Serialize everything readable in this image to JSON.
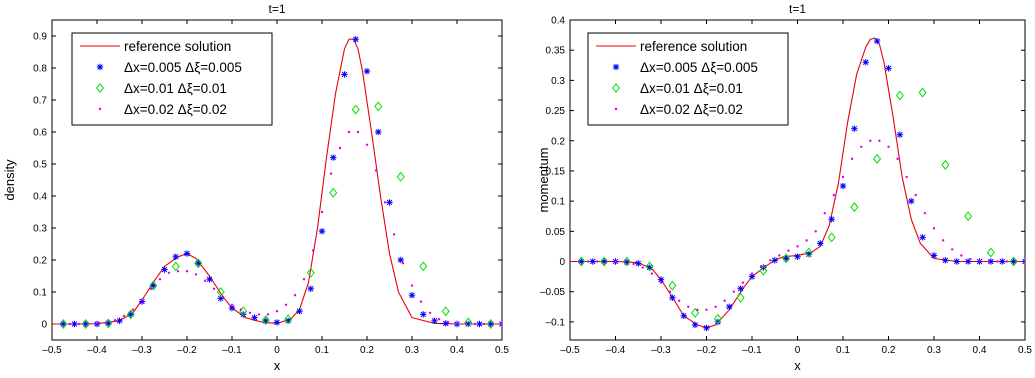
{
  "chart_data": [
    {
      "type": "line",
      "title": "t=1",
      "xlabel": "x",
      "ylabel": "density",
      "xlim": [
        -0.5,
        0.5
      ],
      "ylim": [
        -0.05,
        0.95
      ],
      "xticks": [
        "-0.5",
        "-0.4",
        "-0.3",
        "-0.2",
        "-0.1",
        "0",
        "0.1",
        "0.2",
        "0.3",
        "0.4",
        "0.5"
      ],
      "yticks": [
        "0",
        "0.1",
        "0.2",
        "0.3",
        "0.4",
        "0.5",
        "0.6",
        "0.7",
        "0.8",
        "0.9"
      ],
      "legend_position": "top-left",
      "grid": false,
      "series": [
        {
          "name": "reference solution",
          "marker": "line",
          "color": "#e8000b",
          "x": [
            -0.5,
            -0.45,
            -0.4,
            -0.35,
            -0.32,
            -0.3,
            -0.27,
            -0.25,
            -0.22,
            -0.2,
            -0.18,
            -0.15,
            -0.12,
            -0.1,
            -0.07,
            -0.05,
            -0.03,
            0,
            0.03,
            0.05,
            0.07,
            0.09,
            0.11,
            0.13,
            0.15,
            0.16,
            0.17,
            0.18,
            0.19,
            0.21,
            0.23,
            0.25,
            0.27,
            0.3,
            0.35,
            0.4,
            0.45,
            0.5
          ],
          "y": [
            0,
            0,
            0.001,
            0.01,
            0.035,
            0.075,
            0.14,
            0.18,
            0.21,
            0.22,
            0.205,
            0.15,
            0.085,
            0.05,
            0.02,
            0.012,
            0.005,
            0.002,
            0.015,
            0.045,
            0.13,
            0.3,
            0.52,
            0.72,
            0.86,
            0.89,
            0.89,
            0.86,
            0.79,
            0.6,
            0.4,
            0.22,
            0.1,
            0.02,
            0.002,
            0,
            0,
            0
          ]
        },
        {
          "name": "Δx=0.005  Δξ=0.005",
          "marker": "asterisk",
          "color": "#0000ff",
          "x": [
            -0.475,
            -0.45,
            -0.425,
            -0.4,
            -0.375,
            -0.35,
            -0.325,
            -0.3,
            -0.275,
            -0.25,
            -0.225,
            -0.2,
            -0.175,
            -0.15,
            -0.125,
            -0.1,
            -0.075,
            -0.05,
            -0.025,
            0,
            0.025,
            0.05,
            0.075,
            0.1,
            0.125,
            0.15,
            0.175,
            0.2,
            0.225,
            0.25,
            0.275,
            0.3,
            0.325,
            0.35,
            0.375,
            0.4,
            0.425,
            0.45,
            0.475,
            0.5
          ],
          "y": [
            0,
            0,
            0,
            0,
            0.002,
            0.01,
            0.03,
            0.07,
            0.12,
            0.17,
            0.21,
            0.22,
            0.19,
            0.14,
            0.08,
            0.05,
            0.03,
            0.02,
            0.01,
            0.005,
            0.01,
            0.04,
            0.11,
            0.29,
            0.52,
            0.78,
            0.89,
            0.79,
            0.6,
            0.38,
            0.2,
            0.09,
            0.03,
            0.01,
            0.002,
            0,
            0,
            0,
            0,
            0
          ]
        },
        {
          "name": "Δx=0.01  Δξ=0.01",
          "marker": "diamond",
          "color": "#00e000",
          "x": [
            -0.475,
            -0.425,
            -0.375,
            -0.325,
            -0.275,
            -0.225,
            -0.175,
            -0.125,
            -0.075,
            -0.025,
            0.025,
            0.075,
            0.125,
            0.175,
            0.225,
            0.275,
            0.325,
            0.375,
            0.425,
            0.475
          ],
          "y": [
            0,
            0,
            0.002,
            0.03,
            0.12,
            0.18,
            0.19,
            0.1,
            0.04,
            0.012,
            0.015,
            0.16,
            0.41,
            0.67,
            0.68,
            0.46,
            0.18,
            0.04,
            0.005,
            0
          ]
        },
        {
          "name": "Δx=0.02  Δξ=0.02",
          "marker": "dot",
          "color": "#e000e0",
          "x": [
            -0.48,
            -0.46,
            -0.44,
            -0.42,
            -0.4,
            -0.38,
            -0.36,
            -0.34,
            -0.32,
            -0.3,
            -0.28,
            -0.26,
            -0.24,
            -0.22,
            -0.2,
            -0.18,
            -0.16,
            -0.14,
            -0.12,
            -0.1,
            -0.08,
            -0.06,
            -0.04,
            -0.02,
            0,
            0.02,
            0.04,
            0.06,
            0.08,
            0.1,
            0.12,
            0.14,
            0.16,
            0.18,
            0.2,
            0.22,
            0.24,
            0.26,
            0.28,
            0.3,
            0.32,
            0.34,
            0.36,
            0.38,
            0.4,
            0.42,
            0.44,
            0.46,
            0.48,
            0.5
          ],
          "y": [
            0,
            0,
            0,
            0.001,
            0.002,
            0.005,
            0.012,
            0.025,
            0.045,
            0.075,
            0.11,
            0.14,
            0.16,
            0.165,
            0.165,
            0.155,
            0.135,
            0.11,
            0.085,
            0.06,
            0.045,
            0.035,
            0.03,
            0.03,
            0.04,
            0.06,
            0.09,
            0.14,
            0.23,
            0.35,
            0.47,
            0.55,
            0.6,
            0.6,
            0.56,
            0.48,
            0.38,
            0.28,
            0.19,
            0.12,
            0.07,
            0.035,
            0.015,
            0.006,
            0.002,
            0,
            0,
            0,
            0,
            0
          ]
        }
      ]
    },
    {
      "type": "line",
      "title": "t=1",
      "xlabel": "x",
      "ylabel": "momentum",
      "xlim": [
        -0.5,
        0.5
      ],
      "ylim": [
        -0.13,
        0.4
      ],
      "xticks": [
        "-0.5",
        "-0.4",
        "-0.3",
        "-0.2",
        "-0.1",
        "0",
        "0.1",
        "0.2",
        "0.3",
        "0.4",
        "0.5"
      ],
      "yticks": [
        "-0.1",
        "-0.05",
        "0",
        "0.05",
        "0.1",
        "0.15",
        "0.2",
        "0.25",
        "0.3",
        "0.35",
        "0.4"
      ],
      "legend_position": "top-left",
      "grid": false,
      "series": [
        {
          "name": "reference solution",
          "marker": "line",
          "color": "#e8000b",
          "x": [
            -0.5,
            -0.45,
            -0.4,
            -0.35,
            -0.32,
            -0.3,
            -0.27,
            -0.25,
            -0.22,
            -0.2,
            -0.18,
            -0.15,
            -0.12,
            -0.1,
            -0.07,
            -0.05,
            -0.03,
            0,
            0.03,
            0.05,
            0.07,
            0.09,
            0.11,
            0.13,
            0.15,
            0.16,
            0.17,
            0.18,
            0.19,
            0.21,
            0.23,
            0.25,
            0.27,
            0.3,
            0.35,
            0.4,
            0.45,
            0.5
          ],
          "y": [
            0,
            0,
            0,
            -0.002,
            -0.012,
            -0.03,
            -0.065,
            -0.09,
            -0.105,
            -0.11,
            -0.105,
            -0.08,
            -0.045,
            -0.025,
            -0.008,
            0.002,
            0.008,
            0.01,
            0.015,
            0.025,
            0.06,
            0.13,
            0.23,
            0.31,
            0.355,
            0.368,
            0.37,
            0.36,
            0.33,
            0.24,
            0.14,
            0.07,
            0.03,
            0.005,
            0,
            0,
            0,
            0
          ]
        },
        {
          "name": "Δx=0.005  Δξ=0.005",
          "marker": "asterisk",
          "color": "#0000ff",
          "x": [
            -0.475,
            -0.45,
            -0.425,
            -0.4,
            -0.375,
            -0.35,
            -0.325,
            -0.3,
            -0.275,
            -0.25,
            -0.225,
            -0.2,
            -0.175,
            -0.15,
            -0.125,
            -0.1,
            -0.075,
            -0.05,
            -0.025,
            0,
            0.025,
            0.05,
            0.075,
            0.1,
            0.125,
            0.15,
            0.175,
            0.2,
            0.225,
            0.25,
            0.275,
            0.3,
            0.325,
            0.35,
            0.375,
            0.4,
            0.425,
            0.45,
            0.475,
            0.5
          ],
          "y": [
            0,
            0,
            0,
            0,
            -0.001,
            -0.003,
            -0.01,
            -0.03,
            -0.06,
            -0.09,
            -0.105,
            -0.11,
            -0.1,
            -0.075,
            -0.045,
            -0.025,
            -0.01,
            0.002,
            0.005,
            0.008,
            0.012,
            0.03,
            0.07,
            0.125,
            0.22,
            0.33,
            0.365,
            0.32,
            0.21,
            0.1,
            0.04,
            0.01,
            0.002,
            0,
            0,
            0,
            0,
            0,
            0,
            0
          ]
        },
        {
          "name": "Δx=0.01  Δξ=0.01",
          "marker": "diamond",
          "color": "#00e000",
          "x": [
            -0.475,
            -0.425,
            -0.375,
            -0.325,
            -0.275,
            -0.225,
            -0.175,
            -0.125,
            -0.075,
            -0.025,
            0.025,
            0.075,
            0.125,
            0.175,
            0.225,
            0.275,
            0.325,
            0.375,
            0.425,
            0.475
          ],
          "y": [
            0,
            0,
            0,
            -0.008,
            -0.04,
            -0.085,
            -0.095,
            -0.06,
            -0.015,
            0.005,
            0.015,
            0.04,
            0.09,
            0.17,
            0.275,
            0.28,
            0.16,
            0.075,
            0.015,
            0
          ]
        },
        {
          "name": "Δx=0.02  Δξ=0.02",
          "marker": "dot",
          "color": "#e000e0",
          "x": [
            -0.48,
            -0.46,
            -0.44,
            -0.42,
            -0.4,
            -0.38,
            -0.36,
            -0.34,
            -0.32,
            -0.3,
            -0.28,
            -0.26,
            -0.24,
            -0.22,
            -0.2,
            -0.18,
            -0.16,
            -0.14,
            -0.12,
            -0.1,
            -0.08,
            -0.06,
            -0.04,
            -0.02,
            0,
            0.02,
            0.04,
            0.06,
            0.08,
            0.1,
            0.12,
            0.14,
            0.16,
            0.18,
            0.2,
            0.22,
            0.24,
            0.26,
            0.28,
            0.3,
            0.32,
            0.34,
            0.36,
            0.38,
            0.4,
            0.42,
            0.44,
            0.46,
            0.48,
            0.5
          ],
          "y": [
            0,
            0,
            0,
            0,
            0,
            -0.001,
            -0.004,
            -0.01,
            -0.02,
            -0.035,
            -0.05,
            -0.065,
            -0.075,
            -0.08,
            -0.08,
            -0.075,
            -0.065,
            -0.05,
            -0.035,
            -0.02,
            -0.008,
            0.002,
            0.01,
            0.018,
            0.025,
            0.035,
            0.05,
            0.08,
            0.11,
            0.14,
            0.17,
            0.19,
            0.2,
            0.2,
            0.19,
            0.17,
            0.14,
            0.11,
            0.08,
            0.055,
            0.035,
            0.02,
            0.01,
            0.004,
            0.001,
            0,
            0,
            0,
            0,
            0
          ]
        }
      ]
    }
  ]
}
